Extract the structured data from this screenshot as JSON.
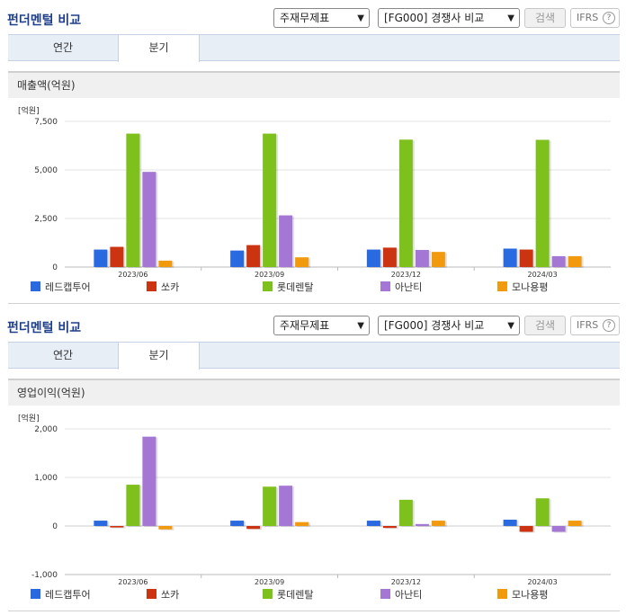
{
  "panels": [
    {
      "header": {
        "title": "펀더멘털 비교",
        "select1": "주재무제표",
        "select2": "[FG000] 경쟁사 비교",
        "search_label": "검색",
        "ifrs_label": "IFRS"
      },
      "tabs": [
        "연간",
        "분기"
      ],
      "active_tab": "분기",
      "section_title": "매출액(억원)",
      "chart_data": {
        "type": "bar",
        "unit_label": "[억원]",
        "categories": [
          "2023/06",
          "2023/09",
          "2023/12",
          "2024/03"
        ],
        "ylim": [
          0,
          7500
        ],
        "yticks": [
          0,
          2500,
          5000,
          7500
        ],
        "ytick_labels": [
          "0",
          "2,500",
          "5,000",
          "7,500"
        ],
        "grid": true,
        "legend_position": "bottom",
        "series": [
          {
            "name": "레드캡투어",
            "color": "#2a6ae0",
            "values": [
              900,
              850,
              900,
              950
            ]
          },
          {
            "name": "쏘카",
            "color": "#cc3311",
            "values": [
              1040,
              1130,
              1000,
              900
            ]
          },
          {
            "name": "롯데렌탈",
            "color": "#7ec01c",
            "values": [
              6870,
              6870,
              6560,
              6550
            ]
          },
          {
            "name": "아난티",
            "color": "#a577d4",
            "values": [
              4900,
              2660,
              880,
              560
            ]
          },
          {
            "name": "모나용평",
            "color": "#f29a0e",
            "values": [
              330,
              500,
              780,
              560
            ]
          }
        ]
      }
    },
    {
      "header": {
        "title": "펀더멘털 비교",
        "select1": "주재무제표",
        "select2": "[FG000] 경쟁사 비교",
        "search_label": "검색",
        "ifrs_label": "IFRS"
      },
      "tabs": [
        "연간",
        "분기"
      ],
      "active_tab": "분기",
      "section_title": "영업이익(억원)",
      "chart_data": {
        "type": "bar",
        "unit_label": "[억원]",
        "categories": [
          "2023/06",
          "2023/09",
          "2023/12",
          "2024/03"
        ],
        "ylim": [
          -1000,
          2000
        ],
        "yticks": [
          -1000,
          0,
          1000,
          2000
        ],
        "ytick_labels": [
          "-1,000",
          "0",
          "1,000",
          "2,000"
        ],
        "grid": true,
        "legend_position": "bottom",
        "series": [
          {
            "name": "레드캡투어",
            "color": "#2a6ae0",
            "values": [
              110,
              110,
              110,
              130
            ]
          },
          {
            "name": "쏘카",
            "color": "#cc3311",
            "values": [
              -30,
              -60,
              -40,
              -120
            ]
          },
          {
            "name": "롯데렌탈",
            "color": "#7ec01c",
            "values": [
              850,
              810,
              540,
              570
            ]
          },
          {
            "name": "아난티",
            "color": "#a577d4",
            "values": [
              1840,
              830,
              40,
              -120
            ]
          },
          {
            "name": "모나용평",
            "color": "#f29a0e",
            "values": [
              -70,
              80,
              110,
              110
            ]
          }
        ]
      }
    }
  ]
}
